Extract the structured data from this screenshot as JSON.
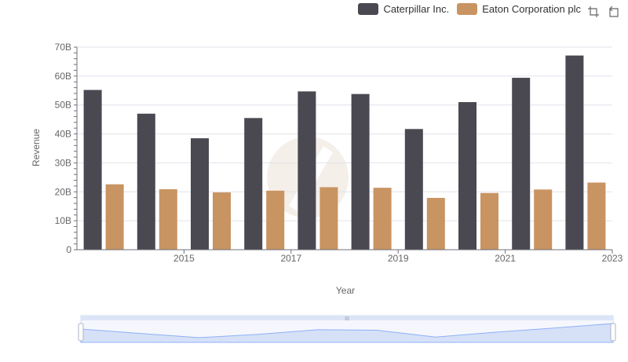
{
  "chart_data": {
    "type": "bar",
    "x": [
      2014,
      2015,
      2016,
      2017,
      2018,
      2019,
      2020,
      2021,
      2022,
      2023
    ],
    "xticks": [
      "2015",
      "2017",
      "2019",
      "2021",
      "2023"
    ],
    "series": [
      {
        "name": "Caterpillar Inc.",
        "color": "#4a4952",
        "values": [
          55.2,
          47.0,
          38.5,
          45.5,
          54.7,
          53.8,
          41.7,
          51.0,
          59.4,
          67.1
        ]
      },
      {
        "name": "Eaton Corporation plc",
        "color": "#c89462",
        "values": [
          22.6,
          20.9,
          19.8,
          20.4,
          21.6,
          21.4,
          17.9,
          19.6,
          20.8,
          23.2
        ]
      }
    ],
    "yticks": [
      "0",
      "10B",
      "20B",
      "30B",
      "40B",
      "50B",
      "60B",
      "70B"
    ],
    "ylim": [
      0,
      70
    ],
    "xlabel": "Year",
    "ylabel": "Revenue",
    "grid": true,
    "legend_position": "top-right"
  },
  "colors": {
    "grid": "#e0e3ea",
    "axis": "#6e7079",
    "slider_fill": "#d6e1f8",
    "slider_stroke": "#8fb0f7",
    "slider_border": "#d2dbee"
  },
  "toolbox": {
    "icons": [
      "zoom-icon",
      "zoom-reset-icon"
    ]
  }
}
